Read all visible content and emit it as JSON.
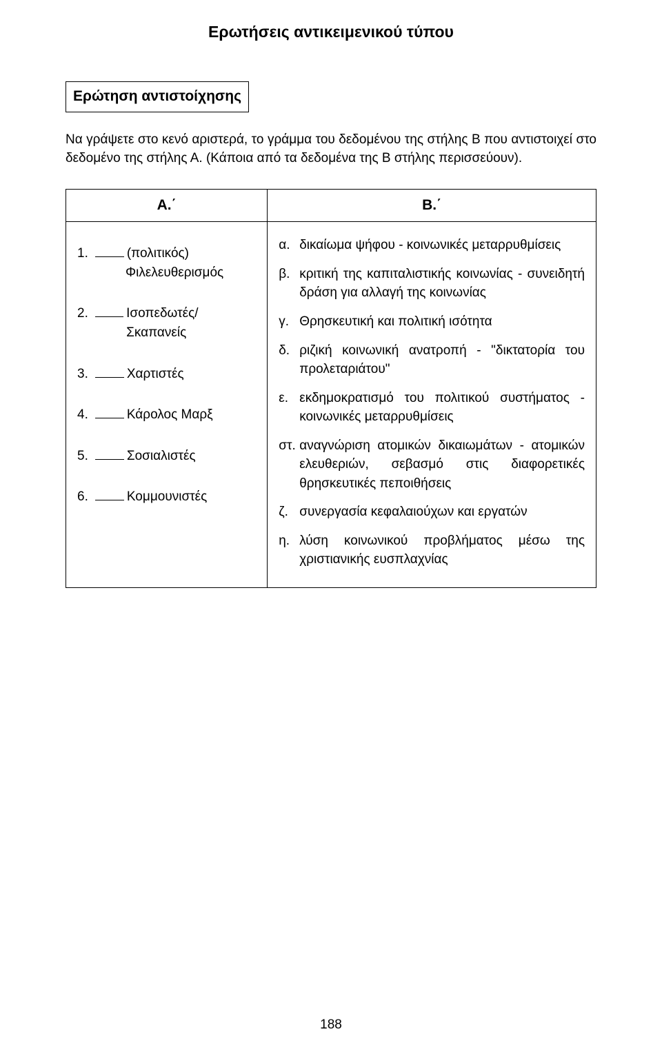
{
  "title": "Ερωτήσεις αντικειμενικού τύπου",
  "section_label": "Ερώτηση αντιστοίχησης",
  "intro": "Να γράψετε στο κενό αριστερά, το γράμμα του δεδομένου της στήλης Β που αντιστοιχεί στο δεδομένο της στήλης Α. (Κάποια από τα δεδομένα της Β στήλης περισσεύουν).",
  "columns": {
    "a_header": "Α.΄",
    "b_header": "Β.΄"
  },
  "a_items": [
    {
      "num": "1.",
      "text": "(πολιτικός)",
      "sub": "Φιλελευθερισμός"
    },
    {
      "num": "2.",
      "text": "Ισοπεδωτές/Σκαπανείς",
      "sub": ""
    },
    {
      "num": "3.",
      "text": "Χαρτιστές",
      "sub": ""
    },
    {
      "num": "4.",
      "text": "Κάρολος Μαρξ",
      "sub": ""
    },
    {
      "num": "5.",
      "text": "Σοσιαλιστές",
      "sub": ""
    },
    {
      "num": "6.",
      "text": "Κομμουνιστές",
      "sub": ""
    }
  ],
  "b_items": [
    {
      "label": "α.",
      "text": "δικαίωμα ψήφου - κοινωνικές μεταρρυθμίσεις"
    },
    {
      "label": "β.",
      "text": "κριτική της καπιταλιστικής κοινωνίας - συνειδητή δράση για αλλαγή της κοινωνίας"
    },
    {
      "label": "γ.",
      "text": "Θρησκευτική και πολιτική ισότητα"
    },
    {
      "label": "δ.",
      "text": "ριζική κοινωνική ανατροπή - \"δικτατορία του προλεταριάτου\""
    },
    {
      "label": "ε.",
      "text": "εκδημοκρατισμό του πολιτικού συστήματος - κοινωνικές μεταρρυθμίσεις"
    },
    {
      "label": "στ.",
      "text": "αναγνώριση ατομικών δικαιωμάτων - ατομικών ελευθεριών, σεβασμό στις διαφορετικές θρησκευτικές πεποιθήσεις"
    },
    {
      "label": "ζ.",
      "text": "συνεργασία κεφαλαιούχων και εργατών"
    },
    {
      "label": "η.",
      "text": "λύση κοινωνικού προβλήματος μέσω της χριστιανικής ευσπλαχνίας"
    }
  ],
  "page_number": "188"
}
